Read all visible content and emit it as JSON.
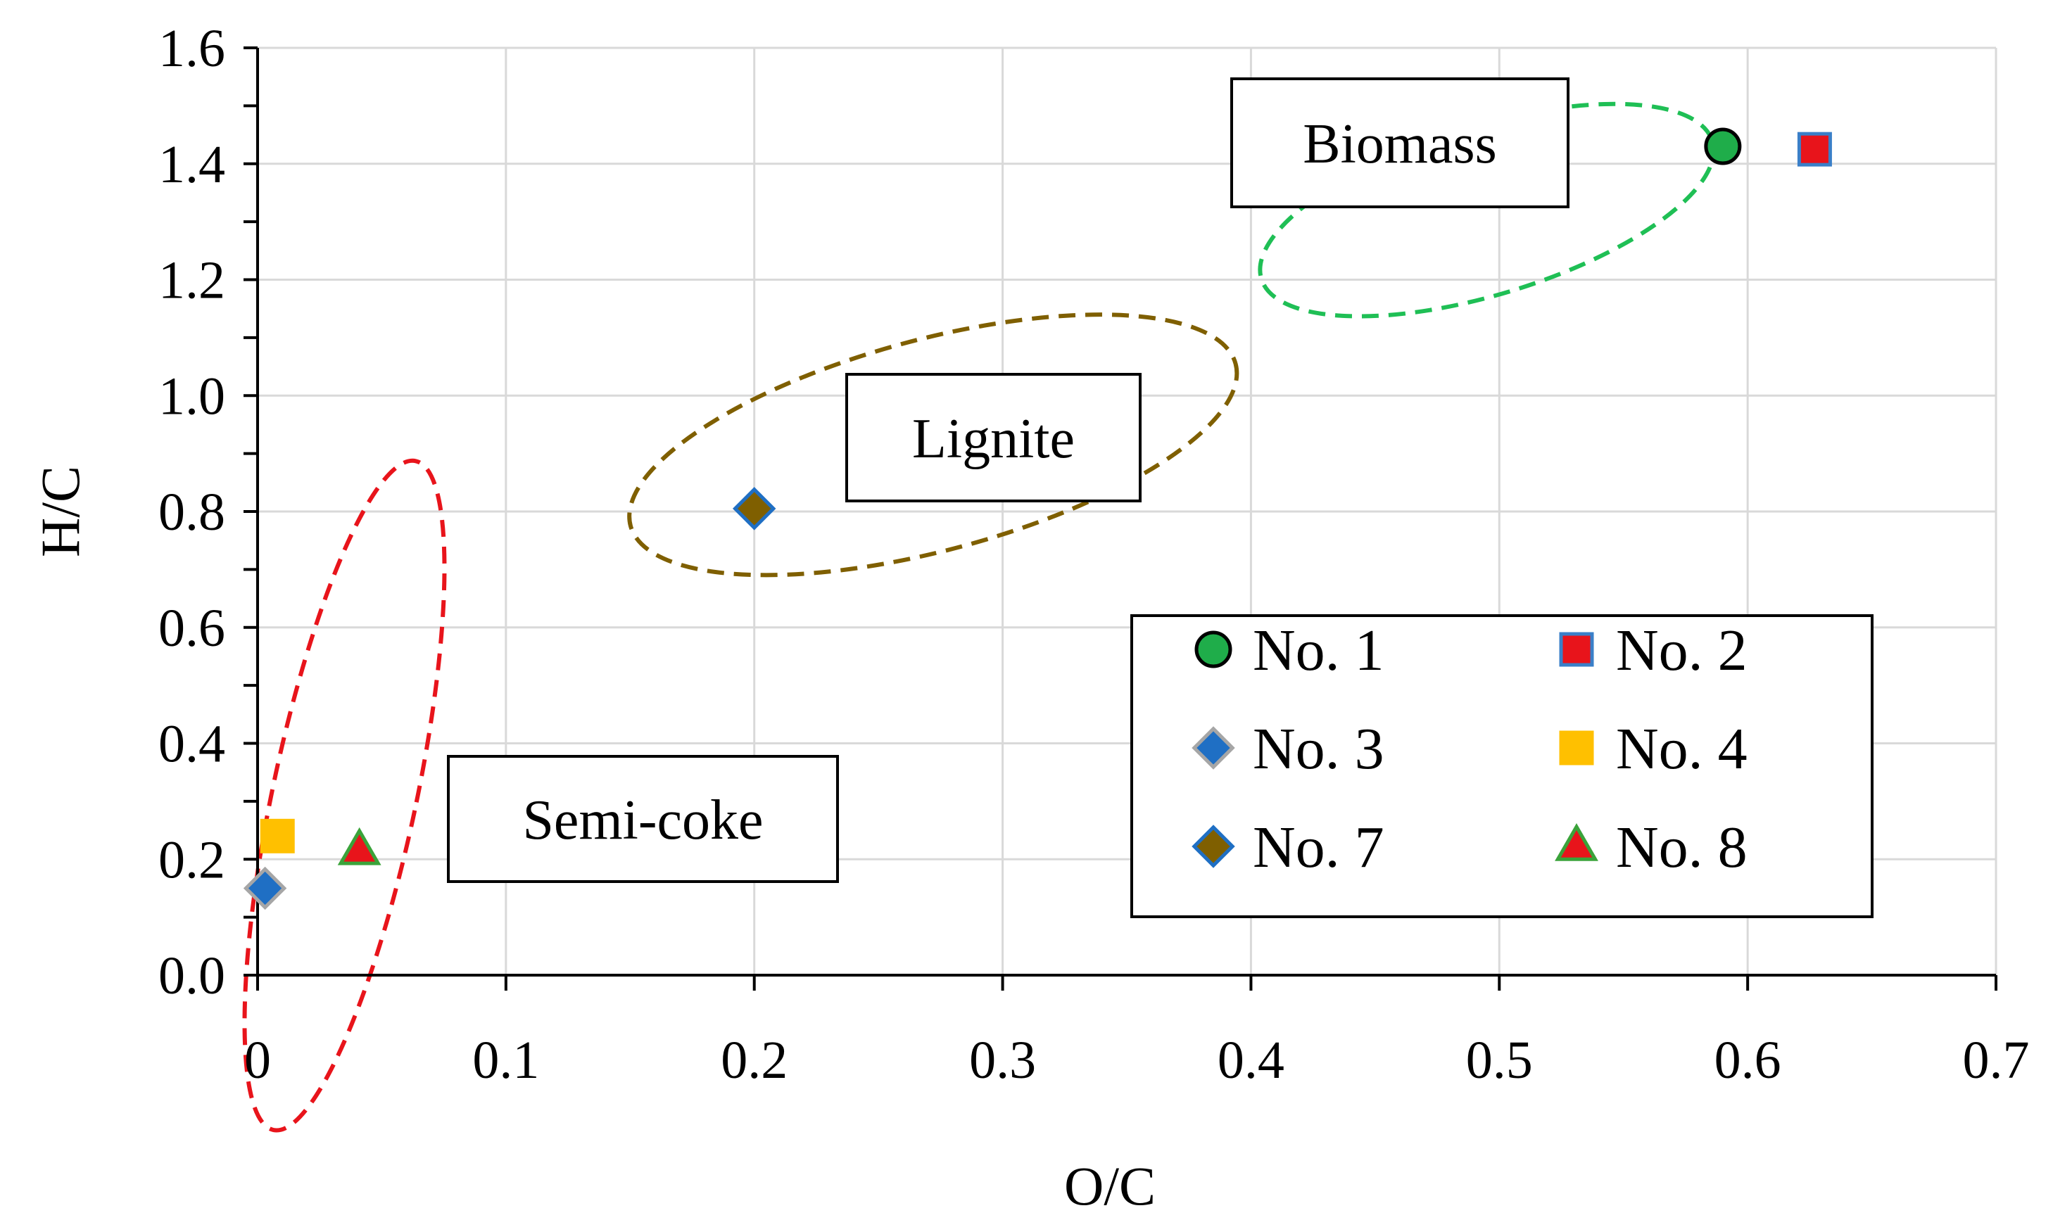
{
  "chart_data": {
    "type": "scatter",
    "xlabel": "O/C",
    "ylabel": "H/C",
    "xlim": [
      0,
      0.7
    ],
    "ylim": [
      0,
      1.6
    ],
    "x_ticks": [
      0,
      0.1,
      0.2,
      0.3,
      0.4,
      0.5,
      0.6,
      0.7
    ],
    "x_tick_labels": [
      "0",
      "0.1",
      "0.2",
      "0.3",
      "0.4",
      "0.5",
      "0.6",
      "0.7"
    ],
    "y_ticks": [
      0,
      0.2,
      0.4,
      0.6,
      0.8,
      1.0,
      1.2,
      1.4,
      1.6
    ],
    "y_tick_labels": [
      "0.0",
      "0.2",
      "0.4",
      "0.6",
      "0.8",
      "1.0",
      "1.2",
      "1.4",
      "1.6"
    ],
    "y_minor_step": 0.1,
    "grid": true,
    "legend_position": "bottom-right",
    "series": [
      {
        "name": "No. 1",
        "marker": "circle",
        "fill": "#1fad4a",
        "stroke": "#000000",
        "points": [
          [
            0.59,
            1.43
          ]
        ]
      },
      {
        "name": "No. 2",
        "marker": "square",
        "fill": "#e8141b",
        "stroke": "#3a7fc8",
        "points": [
          [
            0.627,
            1.425
          ]
        ]
      },
      {
        "name": "No. 3",
        "marker": "diamond",
        "fill": "#1f6fc4",
        "stroke": "#a6a6a6",
        "points": [
          [
            0.003,
            0.15
          ]
        ]
      },
      {
        "name": "No. 4",
        "marker": "square",
        "fill": "#ffc000",
        "stroke": "#ffc000",
        "points": [
          [
            0.008,
            0.24
          ]
        ]
      },
      {
        "name": "No. 7",
        "marker": "diamond",
        "fill": "#7f5f00",
        "stroke": "#1f6fc4",
        "points": [
          [
            0.2,
            0.805
          ]
        ]
      },
      {
        "name": "No. 8",
        "marker": "triangle",
        "fill": "#e8141b",
        "stroke": "#3aa33a",
        "points": [
          [
            0.041,
            0.215
          ]
        ]
      }
    ],
    "annotations": [
      {
        "text": "Biomass",
        "color": "#1fbf55"
      },
      {
        "text": "Lignite",
        "color": "#7f5f00"
      },
      {
        "text": "Semi-coke",
        "color": "#e8141b"
      }
    ]
  }
}
